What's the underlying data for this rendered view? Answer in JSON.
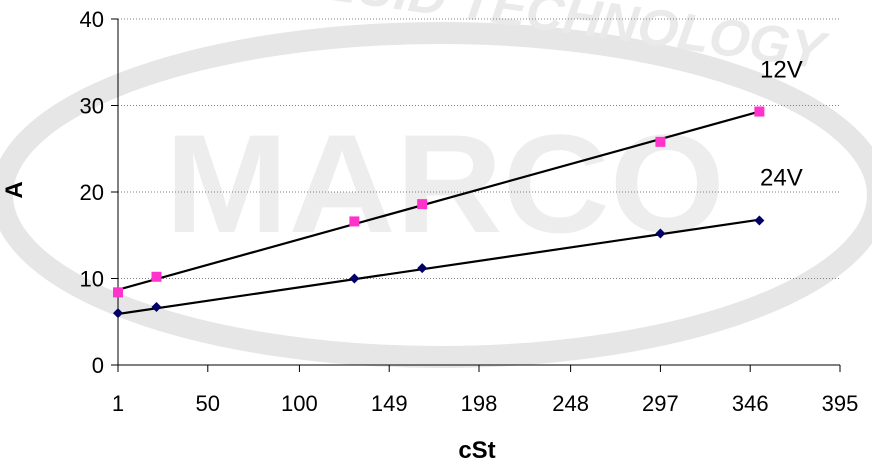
{
  "watermark": {
    "brand": "MARCO",
    "tagline": "FLUID TECHNOLOGY",
    "color": "#e6e6e6"
  },
  "chart_data": {
    "type": "line",
    "title": "",
    "xlabel": "cSt",
    "ylabel": "A",
    "xlim": [
      1,
      395
    ],
    "ylim": [
      0,
      40
    ],
    "x_ticks": [
      "1",
      "50",
      "100",
      "149",
      "198",
      "248",
      "297",
      "346",
      "395"
    ],
    "y_ticks": [
      "0",
      "10",
      "20",
      "30",
      "40"
    ],
    "grid": {
      "horizontal": true,
      "vertical": false,
      "style": "dotted"
    },
    "series": [
      {
        "name": "12V",
        "marker": "square",
        "color": "#ff33cc",
        "x": [
          1,
          22,
          130,
          167,
          297,
          351
        ],
        "y": [
          8.4,
          10.2,
          16.6,
          18.6,
          25.8,
          29.3
        ],
        "trendline": {
          "x": [
            1,
            351
          ],
          "y": [
            8.7,
            29.3
          ]
        }
      },
      {
        "name": "24V",
        "marker": "diamond",
        "color": "#000066",
        "x": [
          1,
          22,
          130,
          167,
          297,
          351
        ],
        "y": [
          6.0,
          6.7,
          10.0,
          11.2,
          15.2,
          16.7
        ],
        "trendline": {
          "x": [
            1,
            351
          ],
          "y": [
            5.9,
            16.8
          ]
        }
      }
    ]
  }
}
